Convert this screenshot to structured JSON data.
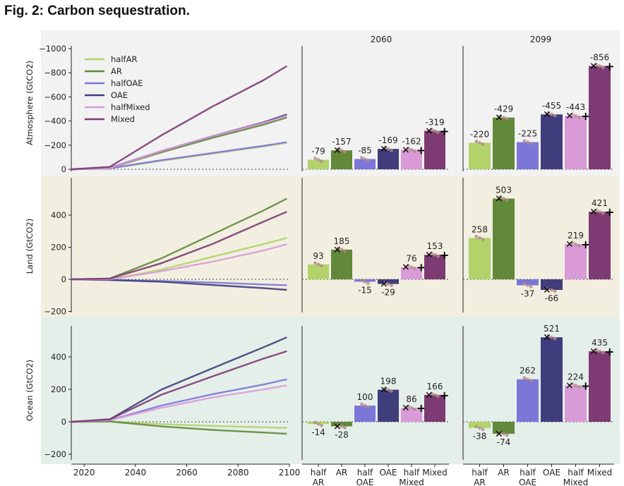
{
  "figure": {
    "title": "Fig. 2: Carbon sequestration.",
    "period_titles": [
      "2060",
      "2099"
    ]
  },
  "colors": {
    "halfAR": "#b2d36a",
    "AR": "#62883a",
    "halfOAE": "#7b76d8",
    "OAE": "#3f3d7c",
    "halfMixed": "#d99ad8",
    "Mixed": "#7d3a73",
    "row_backgrounds": [
      "#f2f2f2",
      "#f2efe1",
      "#e5efea"
    ],
    "dots": "#b28a86"
  },
  "chart_data": [
    {
      "type": "line",
      "panel": "Atmosphere time series",
      "ylabel": "Atmosphere (GtCO2)",
      "ylim": [
        -1000,
        0
      ],
      "y_inverted": true,
      "yticks": [
        "−1000",
        "−800",
        "−600",
        "−400",
        "−200",
        "0"
      ],
      "x": [
        2015,
        2030,
        2050,
        2070,
        2090,
        2099
      ],
      "series": [
        {
          "name": "halfAR",
          "values": [
            0,
            -5,
            -70,
            -130,
            -190,
            -220
          ]
        },
        {
          "name": "AR",
          "values": [
            0,
            -10,
            -140,
            -260,
            -370,
            -429
          ]
        },
        {
          "name": "halfOAE",
          "values": [
            0,
            -8,
            -75,
            -135,
            -195,
            -225
          ]
        },
        {
          "name": "OAE",
          "values": [
            0,
            -12,
            -150,
            -275,
            -390,
            -455
          ]
        },
        {
          "name": "halfMixed",
          "values": [
            0,
            -10,
            -150,
            -275,
            -385,
            -443
          ]
        },
        {
          "name": "Mixed",
          "values": [
            0,
            -20,
            -280,
            -520,
            -740,
            -856
          ]
        }
      ]
    },
    {
      "type": "bar",
      "panel": "Atmosphere 2060",
      "title": "2060",
      "categories": [
        "halfAR",
        "AR",
        "halfOAE",
        "OAE",
        "halfMixed",
        "Mixed"
      ],
      "values": [
        -79,
        -157,
        -85,
        -169,
        -162,
        -319
      ],
      "labels": [
        "-79",
        "-157",
        "-85",
        "-169",
        "-162",
        "-319"
      ],
      "ylim": [
        -1000,
        0
      ]
    },
    {
      "type": "bar",
      "panel": "Atmosphere 2099",
      "title": "2099",
      "categories": [
        "halfAR",
        "AR",
        "halfOAE",
        "OAE",
        "halfMixed",
        "Mixed"
      ],
      "values": [
        -220,
        -429,
        -225,
        -455,
        -443,
        -856
      ],
      "labels": [
        "-220",
        "-429",
        "-225",
        "-455",
        "-443",
        "-856"
      ],
      "ylim": [
        -1000,
        0
      ]
    },
    {
      "type": "line",
      "panel": "Land time series",
      "ylabel": "Land (GtCO2)",
      "ylim": [
        -200,
        500
      ],
      "yticks": [
        "−200",
        "0",
        "200",
        "400"
      ],
      "x": [
        2015,
        2030,
        2050,
        2070,
        2090,
        2099
      ],
      "series": [
        {
          "name": "halfAR",
          "values": [
            0,
            0,
            60,
            140,
            220,
            258
          ]
        },
        {
          "name": "AR",
          "values": [
            0,
            5,
            130,
            280,
            430,
            503
          ]
        },
        {
          "name": "halfOAE",
          "values": [
            0,
            -3,
            -10,
            -20,
            -32,
            -37
          ]
        },
        {
          "name": "OAE",
          "values": [
            0,
            -5,
            -15,
            -35,
            -55,
            -66
          ]
        },
        {
          "name": "halfMixed",
          "values": [
            0,
            0,
            50,
            110,
            180,
            219
          ]
        },
        {
          "name": "Mixed",
          "values": [
            0,
            5,
            100,
            220,
            360,
            421
          ]
        }
      ]
    },
    {
      "type": "bar",
      "panel": "Land 2060",
      "categories": [
        "halfAR",
        "AR",
        "halfOAE",
        "OAE",
        "halfMixed",
        "Mixed"
      ],
      "values": [
        93,
        185,
        -15,
        -29,
        76,
        153
      ],
      "labels": [
        "93",
        "185",
        "-15",
        "-29",
        "76",
        "153"
      ],
      "ylim": [
        -200,
        500
      ]
    },
    {
      "type": "bar",
      "panel": "Land 2099",
      "categories": [
        "halfAR",
        "AR",
        "halfOAE",
        "OAE",
        "halfMixed",
        "Mixed"
      ],
      "values": [
        258,
        503,
        -37,
        -66,
        219,
        421
      ],
      "labels": [
        "258",
        "503",
        "-37",
        "-66",
        "219",
        "421"
      ],
      "ylim": [
        -200,
        500
      ]
    },
    {
      "type": "line",
      "panel": "Ocean time series",
      "ylabel": "Ocean (GtCO2)",
      "ylim": [
        -200,
        500
      ],
      "yticks": [
        "−200",
        "0",
        "200",
        "400"
      ],
      "xticks": [
        "2020",
        "2040",
        "2060",
        "2080",
        "2100"
      ],
      "x": [
        2015,
        2030,
        2050,
        2070,
        2090,
        2099
      ],
      "series": [
        {
          "name": "halfAR",
          "values": [
            0,
            2,
            -14,
            -25,
            -34,
            -38
          ]
        },
        {
          "name": "AR",
          "values": [
            0,
            2,
            -28,
            -50,
            -66,
            -74
          ]
        },
        {
          "name": "halfOAE",
          "values": [
            0,
            10,
            100,
            170,
            230,
            262
          ]
        },
        {
          "name": "OAE",
          "values": [
            0,
            15,
            198,
            330,
            460,
            521
          ]
        },
        {
          "name": "halfMixed",
          "values": [
            0,
            10,
            86,
            150,
            200,
            224
          ]
        },
        {
          "name": "Mixed",
          "values": [
            0,
            15,
            166,
            280,
            390,
            435
          ]
        }
      ]
    },
    {
      "type": "bar",
      "panel": "Ocean 2060",
      "categories": [
        "halfAR",
        "AR",
        "halfOAE",
        "OAE",
        "halfMixed",
        "Mixed"
      ],
      "values": [
        -14,
        -28,
        100,
        198,
        86,
        166
      ],
      "labels": [
        "-14",
        "-28",
        "100",
        "198",
        "86",
        "166"
      ],
      "ylim": [
        -200,
        500
      ]
    },
    {
      "type": "bar",
      "panel": "Ocean 2099",
      "categories": [
        "halfAR",
        "AR",
        "halfOAE",
        "OAE",
        "halfMixed",
        "Mixed"
      ],
      "values": [
        -38,
        -74,
        262,
        521,
        224,
        435
      ],
      "labels": [
        "-38",
        "-74",
        "262",
        "521",
        "224",
        "435"
      ],
      "ylim": [
        -200,
        500
      ]
    }
  ],
  "legend": [
    "halfAR",
    "AR",
    "halfOAE",
    "OAE",
    "halfMixed",
    "Mixed"
  ],
  "bar_tick_labels": [
    [
      "half",
      "AR"
    ],
    [
      "AR",
      ""
    ],
    [
      "half",
      "OAE"
    ],
    [
      "OAE",
      ""
    ],
    [
      "half",
      "Mixed"
    ],
    [
      "Mixed",
      ""
    ]
  ]
}
